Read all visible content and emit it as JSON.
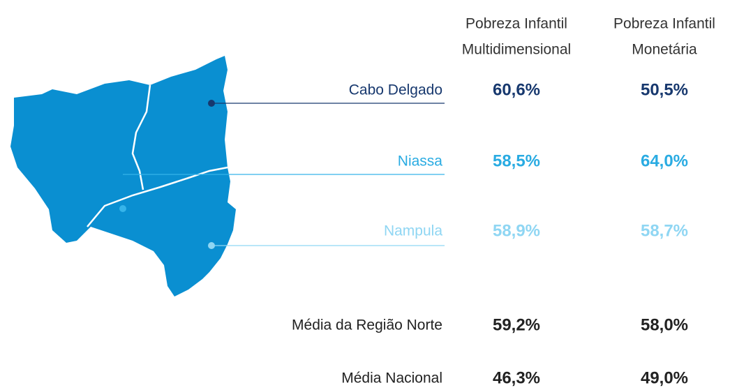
{
  "columns": [
    [
      "Pobreza Infantil",
      "Multidimensional"
    ],
    [
      "Pobreza Infantil",
      "Monetária"
    ]
  ],
  "rows": [
    {
      "label": "Cabo Delgado",
      "values": [
        "60,6%",
        "50,5%"
      ]
    },
    {
      "label": "Niassa",
      "values": [
        "58,5%",
        "64,0%"
      ]
    },
    {
      "label": "Nampula",
      "values": [
        "58,9%",
        "58,7%"
      ]
    },
    {
      "label": "Média da Região Norte",
      "values": [
        "59,2%",
        "58,0%"
      ]
    },
    {
      "label": "Média Nacional",
      "values": [
        "46,3%",
        "49,0%"
      ]
    }
  ]
}
